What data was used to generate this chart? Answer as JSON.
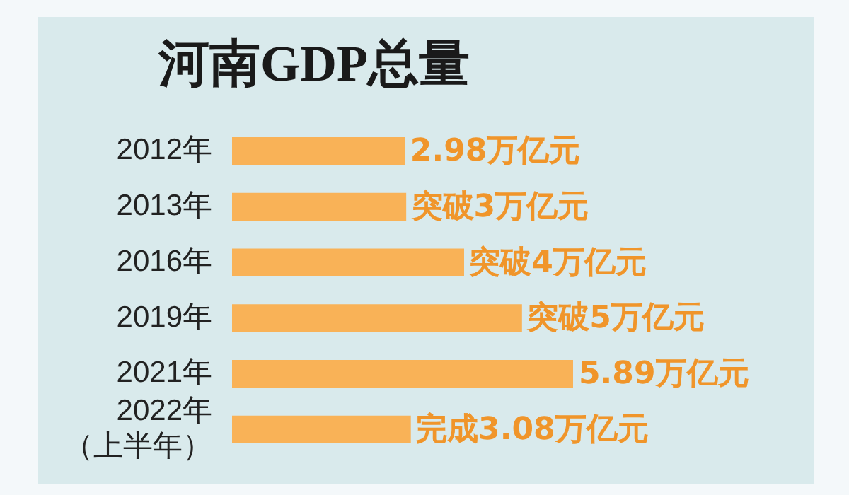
{
  "chart_data": {
    "type": "bar",
    "orientation": "horizontal",
    "title": "河南GDP总量",
    "categories": [
      "2012年",
      "2013年",
      "2016年",
      "2019年",
      "2021年",
      "2022年（上半年）"
    ],
    "values": [
      2.98,
      3,
      4,
      5,
      5.89,
      3.08
    ],
    "value_labels": [
      "2.98万亿元",
      "突破3万亿元",
      "突破4万亿元",
      "突破5万亿元",
      "5.89万亿元",
      "完成3.08万亿元"
    ],
    "color": "#f9b257",
    "legend": false
  }
}
